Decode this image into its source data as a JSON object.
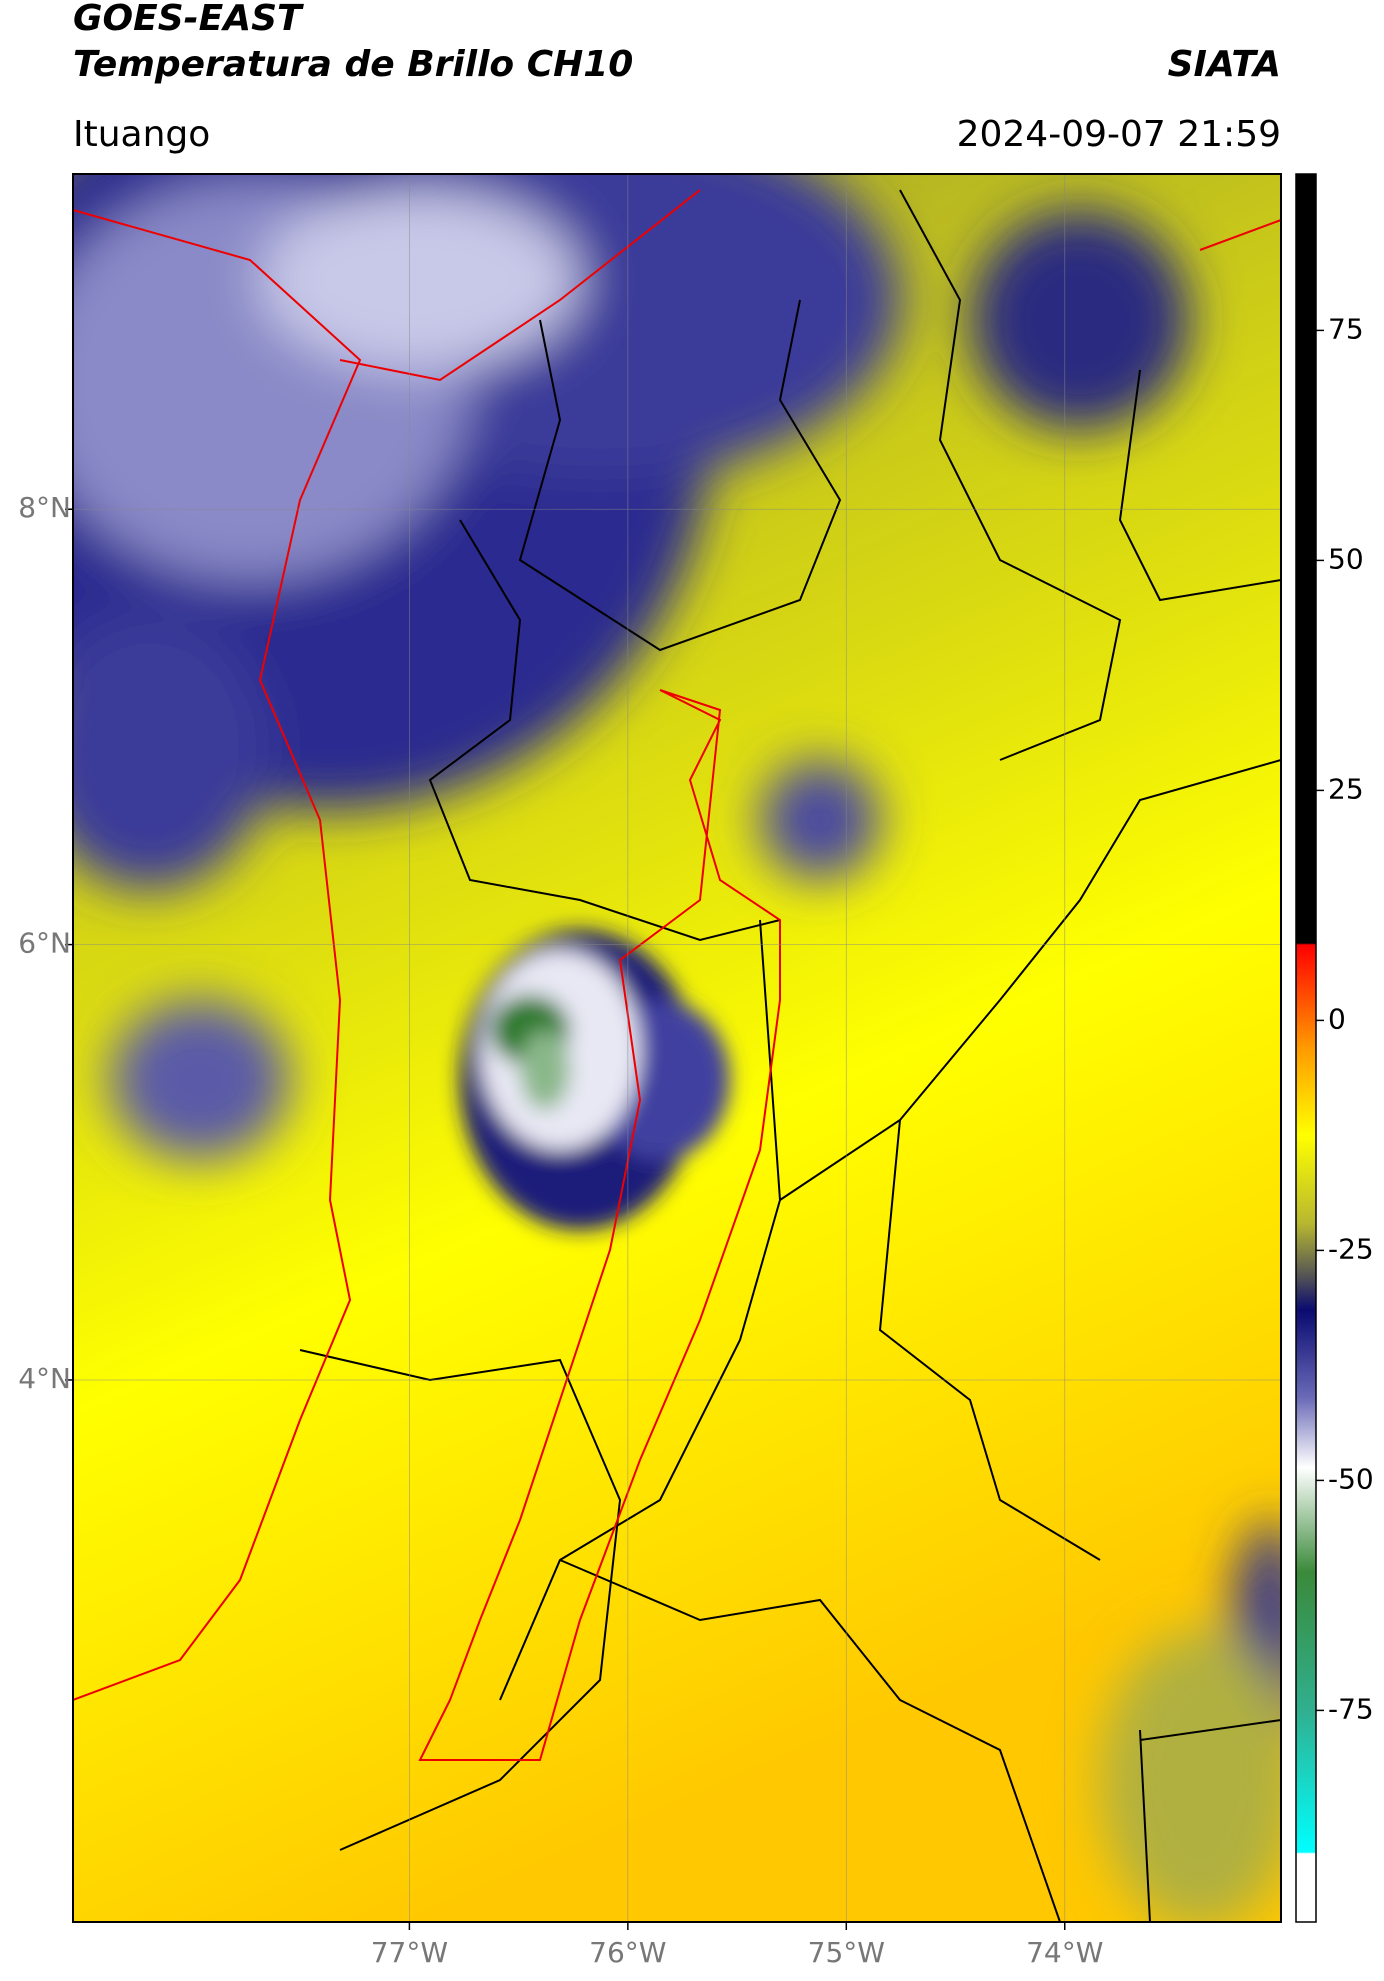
{
  "header": {
    "title": "GOES-EAST",
    "subtitle": "Temperatura de Brillo CH10",
    "agency": "SIATA",
    "location": "Ituango",
    "timestamp": "2024-09-07 21:59"
  },
  "map": {
    "xlim": [
      -78.54,
      -73.01
    ],
    "ylim": [
      1.51,
      9.54
    ],
    "xticks": [
      {
        "value": -77,
        "label": "77°W"
      },
      {
        "value": -76,
        "label": "76°W"
      },
      {
        "value": -75,
        "label": "75°W"
      },
      {
        "value": -74,
        "label": "74°W"
      }
    ],
    "yticks": [
      {
        "value": 8,
        "label": "8°N"
      },
      {
        "value": 6,
        "label": "6°N"
      },
      {
        "value": 4,
        "label": "4°N"
      }
    ]
  },
  "colorbar": {
    "lim": [
      -98,
      92
    ],
    "ticks": [
      75,
      50,
      25,
      0,
      -25,
      -50,
      -75
    ]
  }
}
